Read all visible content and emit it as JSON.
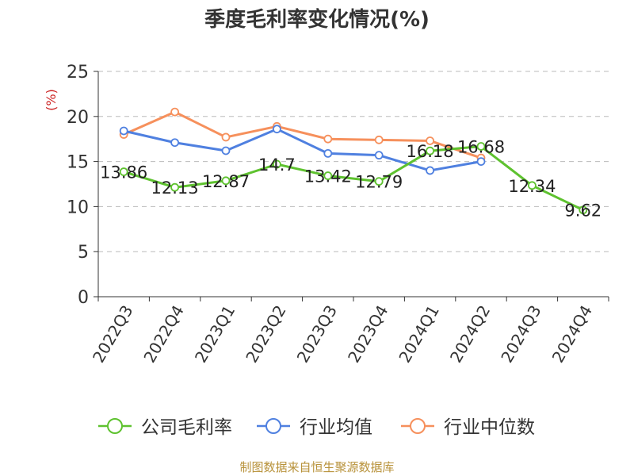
{
  "chart_data": {
    "type": "line",
    "title": "季度毛利率变化情况(%)",
    "ylabel": "(%)",
    "xlabel": "",
    "categories": [
      "2022Q3",
      "2022Q4",
      "2023Q1",
      "2023Q2",
      "2023Q3",
      "2023Q4",
      "2024Q1",
      "2024Q2",
      "2024Q3",
      "2024Q4"
    ],
    "ylim": [
      0,
      25
    ],
    "yticks": [
      0,
      5,
      10,
      15,
      20,
      25
    ],
    "grid": true,
    "legend_position": "bottom",
    "series": [
      {
        "name": "公司毛利率",
        "color": "#5ec22f",
        "show_labels": true,
        "values": [
          13.86,
          12.13,
          12.87,
          14.7,
          13.42,
          12.79,
          16.18,
          16.68,
          12.34,
          9.62
        ],
        "labels": [
          "13.86",
          "12.13",
          "12.87",
          "14.7",
          "13.42",
          "12.79",
          "16.18",
          "16.68",
          "12.34",
          "9.62"
        ]
      },
      {
        "name": "行业均值",
        "color": "#4f80e0",
        "show_labels": false,
        "values": [
          18.4,
          17.1,
          16.2,
          18.6,
          15.9,
          15.7,
          14.0,
          15.0,
          null,
          null
        ]
      },
      {
        "name": "行业中位数",
        "color": "#f6905c",
        "show_labels": false,
        "values": [
          18.0,
          20.5,
          17.7,
          18.9,
          17.5,
          17.4,
          17.3,
          15.4,
          null,
          null
        ]
      }
    ]
  },
  "footer": {
    "source": "制图数据来自恒生聚源数据库"
  }
}
